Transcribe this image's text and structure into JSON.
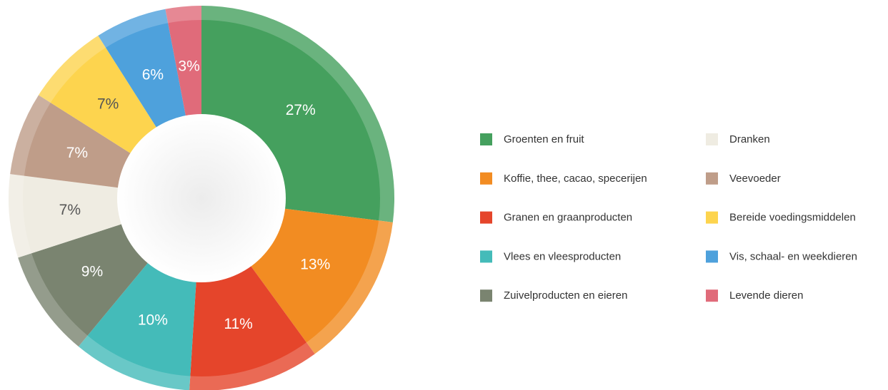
{
  "chart_data": {
    "type": "donut",
    "categories": [
      "Groenten en fruit",
      "Koffie, thee, cacao, specerijen",
      "Granen en graanproducten",
      "Vlees en vleesproducten",
      "Zuivelproducten en eieren",
      "Dranken",
      "Veevoeder",
      "Bereide voedingsmiddelen",
      "Vis, schaal- en weekdieren",
      "Levende dieren"
    ],
    "values": [
      27,
      13,
      11,
      10,
      9,
      7,
      7,
      7,
      6,
      3
    ],
    "value_labels": [
      "27%",
      "13%",
      "11%",
      "10%",
      "9%",
      "7%",
      "7%",
      "7%",
      "6%",
      "3%"
    ],
    "colors": [
      "#45a05e",
      "#f28c22",
      "#e5452b",
      "#44bbb9",
      "#7a8470",
      "#efece2",
      "#bf9d89",
      "#fdd44e",
      "#4ea1dc",
      "#e06b7a"
    ],
    "legend": "right"
  }
}
